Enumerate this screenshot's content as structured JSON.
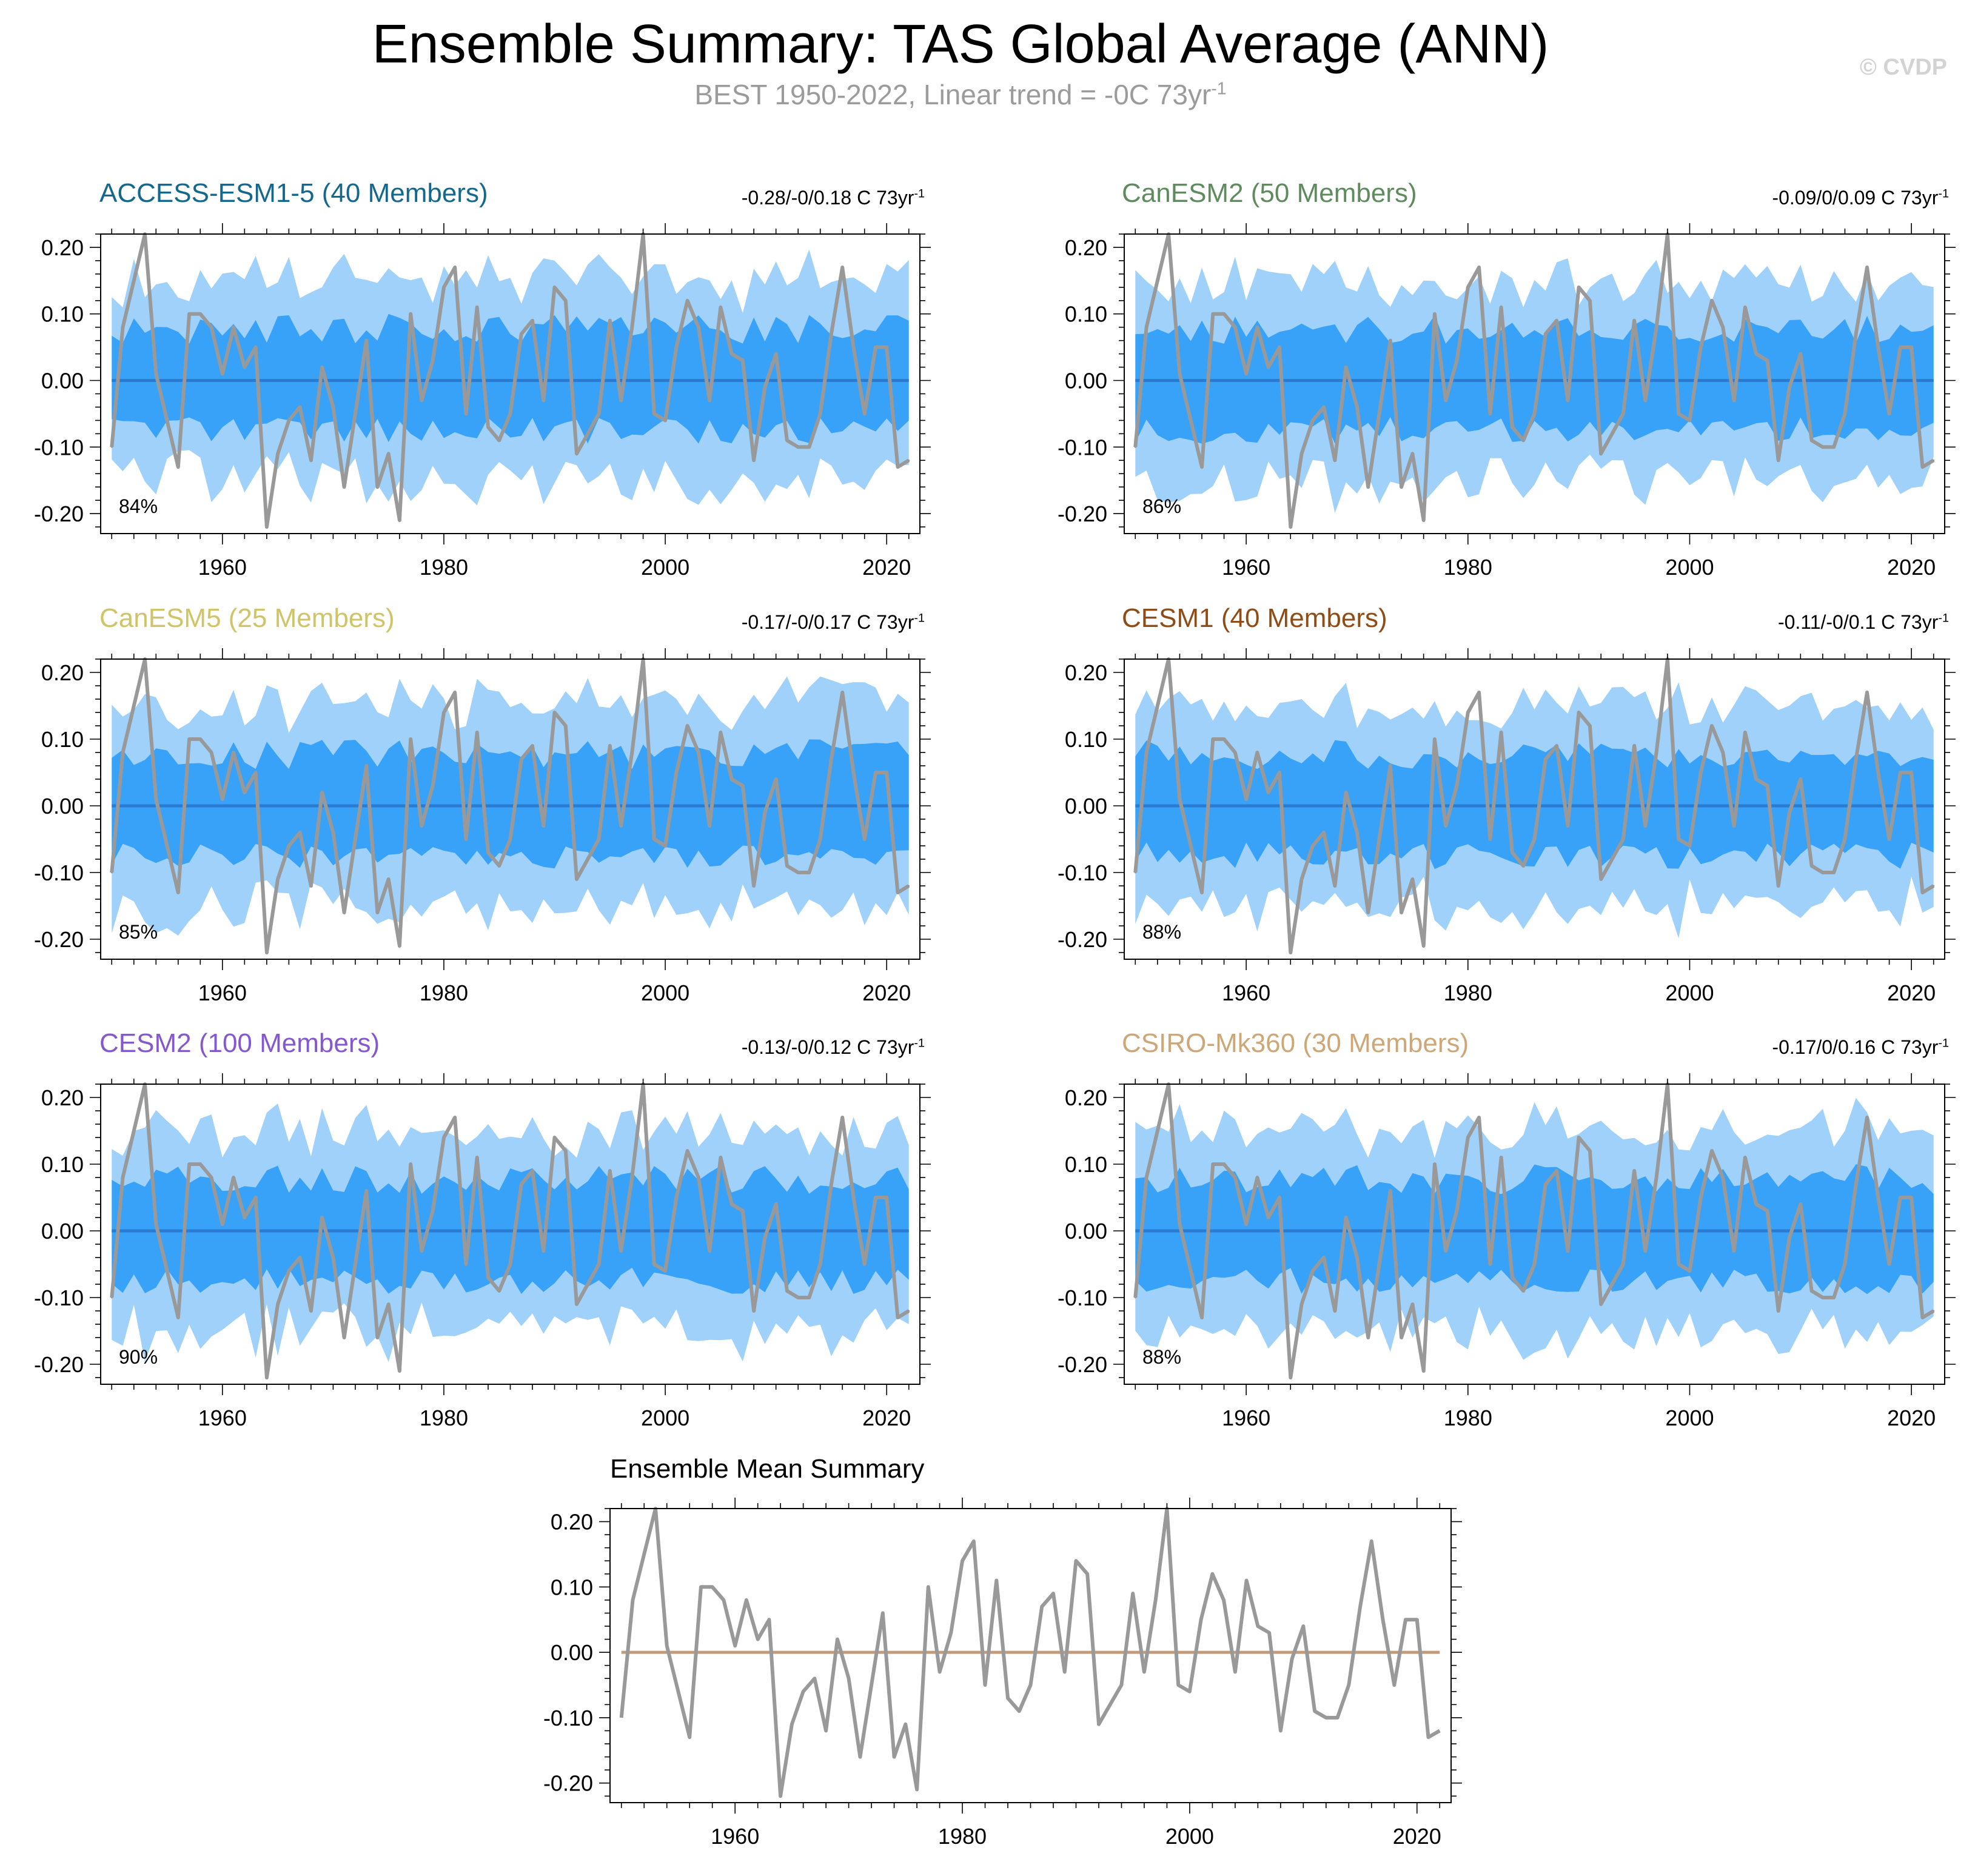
{
  "title": "Ensemble Summary: TAS Global Average (ANN)",
  "subtitle": "BEST 1950-2022, Linear trend = -0C 73yr",
  "subtitle_sup": "-1",
  "credit": "© CVDP",
  "trend_sup": "-1",
  "colors": {
    "outer_band": "#9fd1fb",
    "inner_band": "#38a2f9",
    "ensemble_mean_line": "#2b7bd0",
    "observed_line": "#999999",
    "summary_zero_line": "#c49b78",
    "axis": "#000000"
  },
  "panels": [
    {
      "title": "ACCESS-ESM1-5 (40 Members)",
      "title_color": "#15688d",
      "trend": "-0.28/-0/0.18 C 73yr",
      "percent": "84%"
    },
    {
      "title": "CanESM2 (50 Members)",
      "title_color": "#5f8b5f",
      "trend": "-0.09/0/0.09 C 73yr",
      "percent": "86%"
    },
    {
      "title": "CanESM5 (25 Members)",
      "title_color": "#cfc468",
      "trend": "-0.17/-0/0.17 C 73yr",
      "percent": "85%"
    },
    {
      "title": "CESM1 (40 Members)",
      "title_color": "#8f4c16",
      "trend": "-0.11/-0/0.1 C 73yr",
      "percent": "88%"
    },
    {
      "title": "CESM2 (100 Members)",
      "title_color": "#8458cf",
      "trend": "-0.13/-0/0.12 C 73yr",
      "percent": "90%"
    },
    {
      "title": "CSIRO-Mk360 (30 Members)",
      "title_color": "#cea778",
      "trend": "-0.17/0/0.16 C 73yr",
      "percent": "88%"
    }
  ],
  "summary": {
    "title": "Ensemble Mean Summary"
  },
  "chart_data": [
    {
      "type": "line",
      "xlim": [
        1949,
        2023
      ],
      "ylim": [
        -0.23,
        0.22
      ],
      "x_ticks": [
        "1960",
        "1980",
        "2000",
        "2020"
      ],
      "y_ticks": [
        "0.20",
        "0.10",
        "0.00",
        "-0.10",
        "-0.20"
      ],
      "x_start": 1950,
      "observed": [
        -0.1,
        0.08,
        0.15,
        0.22,
        0.01,
        -0.06,
        -0.13,
        0.1,
        0.1,
        0.08,
        0.01,
        0.08,
        0.02,
        0.05,
        -0.22,
        -0.11,
        -0.06,
        -0.04,
        -0.12,
        0.02,
        -0.04,
        -0.16,
        -0.05,
        0.06,
        -0.16,
        -0.11,
        -0.21,
        0.1,
        -0.03,
        0.03,
        0.14,
        0.17,
        -0.05,
        0.11,
        -0.07,
        -0.09,
        -0.05,
        0.07,
        0.09,
        -0.03,
        0.14,
        0.12,
        -0.11,
        -0.08,
        -0.05,
        0.09,
        -0.03,
        0.08,
        0.22,
        -0.05,
        -0.06,
        0.05,
        0.12,
        0.08,
        -0.03,
        0.11,
        0.04,
        0.03,
        -0.12,
        -0.01,
        0.04,
        -0.09,
        -0.1,
        -0.1,
        -0.05,
        0.07,
        0.17,
        0.05,
        -0.05,
        0.05,
        0.05,
        -0.13,
        -0.12
      ],
      "ensemble_mean": 0
    }
  ]
}
